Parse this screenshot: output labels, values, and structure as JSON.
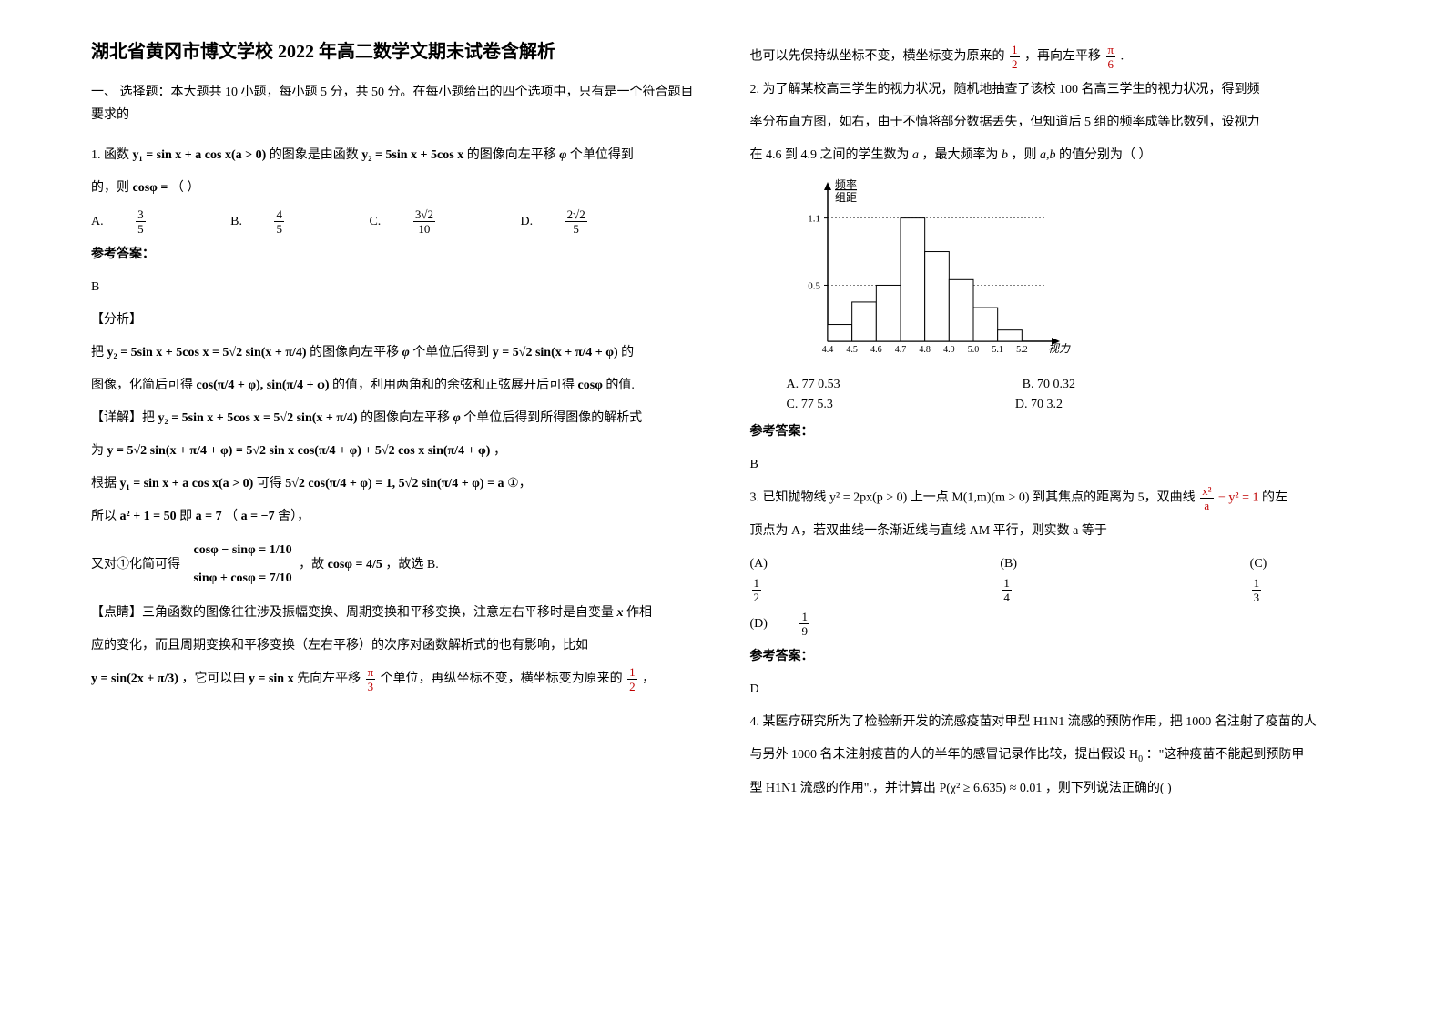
{
  "title": "湖北省黄冈市博文学校 2022 年高二数学文期末试卷含解析",
  "section1_head": "一、 选择题：本大题共 10 小题，每小题 5 分，共 50 分。在每小题给出的四个选项中，只有是一个符合题目要求的",
  "q1": {
    "stem_a": "1. 函数",
    "stem_b": "的图象是由函数",
    "stem_c": "的图像向左平移",
    "stem_d": "个单位得到",
    "line2_a": "的，则",
    "line2_b": "（        ）",
    "optA_label": "A.",
    "optB_label": "B.",
    "optC_label": "C.",
    "optD_label": "D.",
    "ans_label": "参考答案：",
    "ans": "B",
    "analysis_label": "【分析】",
    "ana1_a": "把",
    "ana1_b": "的图像向左平移",
    "ana1_c": "个单位后得到",
    "ana1_d": "的",
    "ana2_a": "图像，化简后可得",
    "ana2_b": "的值，利用两角和的余弦和正弦展开后可得",
    "ana2_c": "的值.",
    "detail_label": "【详解】把",
    "detail_b": "的图像向左平移",
    "detail_c": "个单位后得到所得图像的解析式",
    "wei": "为",
    "comma": "，",
    "genju_a": "根据",
    "genju_b": "可得",
    "genju_c": "①，",
    "suoyi_a": "所以",
    "suoyi_b": "即",
    "suoyi_c": "（",
    "suoyi_d": "舍），",
    "youdui_a": "又对①化简可得",
    "youdui_b": "，故",
    "youdui_c": "，故选 B.",
    "dianjing_a": "【点睛】三角函数的图像往往涉及振幅变换、周期变换和平移变换，注意左右平移时是自变量",
    "dianjing_b": "作相",
    "dianjing2": "应的变化，而且周期变换和平移变换（左右平移）的次序对函数解析式的也有影响，比如",
    "tail_a": "，它可以由",
    "tail_b": "先向左平移",
    "tail_c": "个单位，再纵坐标不变，横坐标变为原来的",
    "tail_d": "，",
    "col2_top_a": "也可以先保持纵坐标不变，横坐标变为原来的",
    "col2_top_b": "，再向左平移",
    "col2_top_c": "."
  },
  "q2": {
    "stem1": "2. 为了解某校高三学生的视力状况，随机地抽查了该校 100 名高三学生的视力状况，得到频",
    "stem2": "率分布直方图，如右，由于不慎将部分数据丢失，但知道后 5 组的频率成等比数列，设视力",
    "stem3_a": "在",
    "stem3_b": "到",
    "stem3_c": "之间的学生数为",
    "stem3_d": "，最大频率为",
    "stem3_e": "，则",
    "stem3_f": "的值分别为（     ）",
    "chart": {
      "y_label_top": "频率",
      "y_label_bot": "组距",
      "y_ticks": [
        "1.1",
        "0.5"
      ],
      "x_ticks": [
        "4.4",
        "4.5",
        "4.6",
        "4.7",
        "4.8",
        "4.9",
        "5.0",
        "5.1",
        "5.2"
      ],
      "x_axis_right": "视力",
      "bar_heights": [
        0.15,
        0.35,
        0.5,
        1.1,
        0.8,
        0.55,
        0.3,
        0.1
      ],
      "axis_color": "#000000",
      "bar_fill": "#ffffff",
      "bar_stroke": "#000000",
      "y_max": 1.3
    },
    "optA": "A.  77   0.53",
    "optB": "B.  70   0.32",
    "optC": "C.  77   5.3",
    "optD": "D.  70   3.2",
    "ans_label": "参考答案：",
    "ans": "B"
  },
  "q3": {
    "stem_a": "3. 已知抛物线",
    "stem_b": " 上一点",
    "stem_c": "到其焦点的距离为 5，双曲线",
    "stem_d": "的左",
    "stem2": "顶点为 A，若双曲线一条渐近线与直线 AM 平行，则实数 a 等于",
    "optA_lab": "(A)",
    "optB_lab": "(B)",
    "optC_lab": "(C)",
    "optD_lab": "(D)",
    "ans_label": "参考答案：",
    "ans": "D"
  },
  "q4": {
    "stem1": "4. 某医疗研究所为了检验新开发的流感疫苗对甲型 H1N1 流感的预防作用，把 1000 名注射了疫苗的人",
    "stem2_a": "与另外 1000 名未注射疫苗的人的半年的感冒记录作比较，提出假设 H",
    "stem2_b": "：\"这种疫苗不能起到预防甲",
    "stem3_a": "型 H1N1 流感的作用\".，并计算出",
    "stem3_b": "，则下列说法正确的(         )"
  },
  "formulas": {
    "y1": "y₁ = sin x + a cos x(a > 0)",
    "y2": "y₂ = 5sin x + 5cos x",
    "phi": "φ",
    "cosphi": "cosφ =",
    "f3_5": {
      "n": "3",
      "d": "5"
    },
    "f4_5": {
      "n": "4",
      "d": "5"
    },
    "f3r2_10": {
      "n": "3√2",
      "d": "10"
    },
    "f2r2_5": {
      "n": "2√2",
      "d": "5"
    },
    "y2long": "y₂ = 5sin x + 5cos x = 5√2 sin(x + π/4)",
    "yshift": "y = 5√2 sin(x + π/4 + φ)",
    "cossin": "cos(π/4 + φ), sin(π/4 + φ)",
    "cosphi2": "cosφ",
    "expand": "y = 5√2 sin(x + π/4 + φ) = 5√2 sin x cos(π/4 + φ) + 5√2 cos x sin(π/4 + φ)",
    "eq1": "5√2 cos(π/4 + φ) = 1, 5√2 sin(π/4 + φ) = a",
    "a2": "a² + 1 = 50",
    "a7": "a = 7",
    "aneg7": "a = −7",
    "sys1": "cosφ − sinφ = 1/10",
    "sys2": "sinφ + cosφ = 7/10",
    "cosphi45": "cosφ = 4/5",
    "x": "x",
    "ysin2x": "y = sin(2x + π/3)",
    "ysinx": "y = sin x",
    "fpi3": {
      "n": "π",
      "d": "3"
    },
    "f1_2": {
      "n": "1",
      "d": "2"
    },
    "fpi6": {
      "n": "π",
      "d": "6"
    },
    "v46": "4.6",
    "v49": "4.9",
    "va": "a",
    "vb": "b",
    "vab": "a,b",
    "parab": "y² = 2px(p > 0)",
    "M": "M(1,m)(m > 0)",
    "hyp_a": {
      "n": "x²",
      "d": "a"
    },
    "hyp_b": " − y² = 1",
    "f1_2b": {
      "n": "1",
      "d": "2"
    },
    "f1_4": {
      "n": "1",
      "d": "4"
    },
    "f1_3": {
      "n": "1",
      "d": "3"
    },
    "f1_9": {
      "n": "1",
      "d": "9"
    },
    "pchi": "P(χ² ≥ 6.635) ≈ 0.01"
  }
}
